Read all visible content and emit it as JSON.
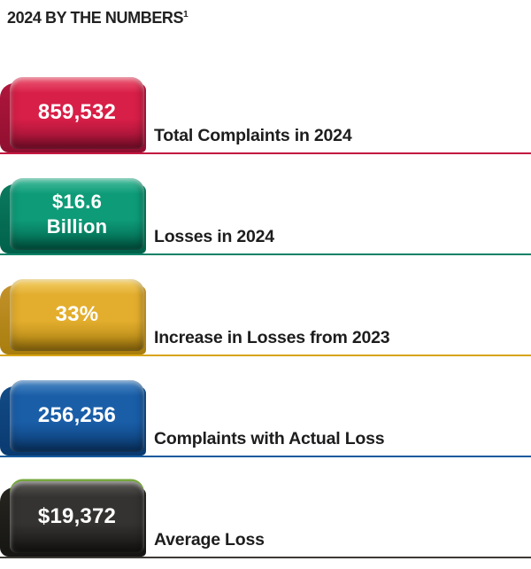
{
  "title": {
    "text": "2024 BY THE NUMBERS",
    "superscript": "1"
  },
  "stats": [
    {
      "value_line1": "859,532",
      "value_line2": "",
      "label": "Total Complaints in 2024",
      "colors": {
        "face": "#d81f48",
        "light": "#ee5f77",
        "dark": "#8f0f30",
        "side": "#b0163c",
        "line": "#c41740"
      }
    },
    {
      "value_line1": "$16.6",
      "value_line2": "Billion",
      "label": "Losses in 2024",
      "colors": {
        "face": "#0e9b78",
        "light": "#4cc0a0",
        "dark": "#00614a",
        "side": "#0b7a5e",
        "line": "#0e8266"
      }
    },
    {
      "value_line1": "33%",
      "value_line2": "",
      "label": "Increase in Losses from 2023",
      "colors": {
        "face": "#e3ae2e",
        "light": "#f4d06a",
        "dark": "#a87d0d",
        "side": "#c3922a",
        "line": "#d8a413"
      }
    },
    {
      "value_line1": "256,256",
      "value_line2": "",
      "label": "Complaints with Actual Loss",
      "colors": {
        "face": "#1a5ea8",
        "light": "#4f8ac5",
        "dark": "#0a3a70",
        "side": "#124b86",
        "line": "#155a9e"
      }
    },
    {
      "value_line1": "$19,372",
      "value_line2": "",
      "label": "Average Loss",
      "colors": {
        "face": "#353331",
        "light": "#5c5a56",
        "dark": "#161513",
        "side": "#26251f",
        "line": "#3c3a36",
        "rim": "#76a73e"
      }
    }
  ],
  "chart_data": {
    "type": "table",
    "title": "2024 BY THE NUMBERS",
    "rows": [
      {
        "metric": "Total Complaints in 2024",
        "value": "859,532"
      },
      {
        "metric": "Losses in 2024",
        "value": "$16.6 Billion"
      },
      {
        "metric": "Increase in Losses from 2023",
        "value": "33%"
      },
      {
        "metric": "Complaints with Actual Loss",
        "value": "256,256"
      },
      {
        "metric": "Average Loss",
        "value": "$19,372"
      }
    ]
  }
}
